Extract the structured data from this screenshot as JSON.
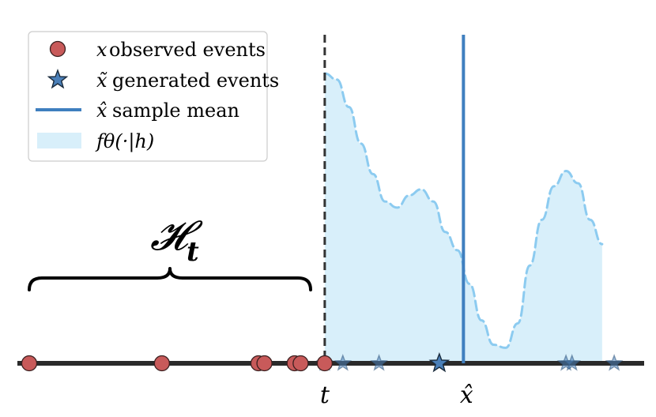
{
  "labels": {
    "history": "𝓗",
    "history_sub": "t",
    "time_t": "t",
    "mean_label": "x̂"
  },
  "legend": {
    "items": [
      {
        "symbol": "x",
        "text": "observed events",
        "marker": "circle"
      },
      {
        "symbol": "x̃",
        "text": "generated events",
        "marker": "star"
      },
      {
        "symbol": "x̂",
        "text": "sample mean",
        "marker": "line"
      },
      {
        "symbol": "fθ(·|h)",
        "text": "",
        "marker": "patch"
      }
    ]
  },
  "colors": {
    "observed": "#c85a5a",
    "generated": "#4a7fb8",
    "mean_line": "#3f7fbf",
    "density_fill": "#d8effa",
    "density_stroke": "#8ccbf0",
    "axis": "#2a2a2a"
  },
  "observed_events": [
    0.0,
    0.22,
    0.38,
    0.39,
    0.44,
    0.45,
    0.49
  ],
  "generated_events": [
    0.49,
    0.52,
    0.58,
    0.68,
    0.89,
    0.9,
    0.97
  ],
  "highlighted_generated": 0.68,
  "sample_mean": 0.72,
  "present_time": 0.49,
  "density": [
    [
      0.49,
      0.93
    ],
    [
      0.51,
      0.91
    ],
    [
      0.53,
      0.82
    ],
    [
      0.55,
      0.7
    ],
    [
      0.57,
      0.6
    ],
    [
      0.59,
      0.51
    ],
    [
      0.61,
      0.49
    ],
    [
      0.63,
      0.53
    ],
    [
      0.65,
      0.55
    ],
    [
      0.67,
      0.51
    ],
    [
      0.69,
      0.41
    ],
    [
      0.71,
      0.35
    ],
    [
      0.73,
      0.24
    ],
    [
      0.75,
      0.12
    ],
    [
      0.77,
      0.04
    ],
    [
      0.79,
      0.03
    ],
    [
      0.81,
      0.11
    ],
    [
      0.83,
      0.3
    ],
    [
      0.85,
      0.45
    ],
    [
      0.87,
      0.56
    ],
    [
      0.89,
      0.61
    ],
    [
      0.91,
      0.57
    ],
    [
      0.93,
      0.45
    ],
    [
      0.95,
      0.37
    ]
  ]
}
